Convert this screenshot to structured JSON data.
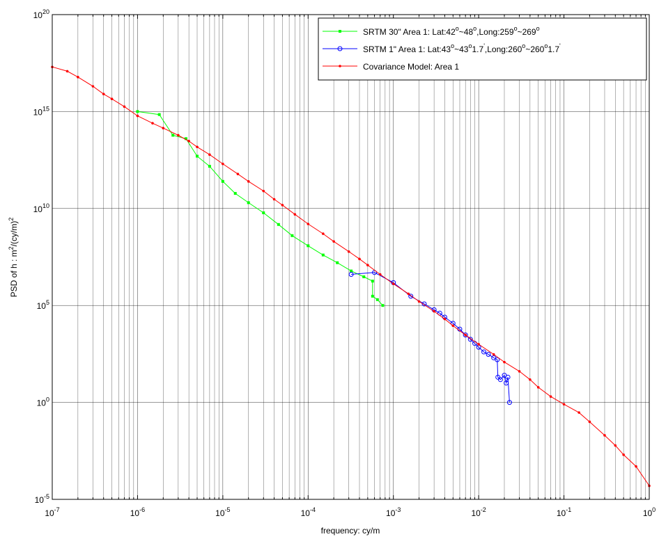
{
  "chart_data": {
    "type": "line",
    "title": "",
    "xlabel": "frequency: cy/m",
    "ylabel": "PSD of h : m²/(cy/m)²",
    "ylabel_parts": {
      "main": "PSD of h : m",
      "sup1": "2",
      "mid": "/(cy/m)",
      "sup2": "2"
    },
    "x_scale": "log",
    "y_scale": "log",
    "xlim": [
      1e-07,
      1
    ],
    "ylim": [
      1e-05,
      1e+20
    ],
    "x_ticks": [
      {
        "exp": -7,
        "base": "10",
        "pow": "-7"
      },
      {
        "exp": -6,
        "base": "10",
        "pow": "-6"
      },
      {
        "exp": -5,
        "base": "10",
        "pow": "-5"
      },
      {
        "exp": -4,
        "base": "10",
        "pow": "-4"
      },
      {
        "exp": -3,
        "base": "10",
        "pow": "-3"
      },
      {
        "exp": -2,
        "base": "10",
        "pow": "-2"
      },
      {
        "exp": -1,
        "base": "10",
        "pow": "-1"
      },
      {
        "exp": 0,
        "base": "10",
        "pow": "0"
      }
    ],
    "y_ticks": [
      {
        "exp": -5,
        "base": "10",
        "pow": "-5"
      },
      {
        "exp": 0,
        "base": "10",
        "pow": "0"
      },
      {
        "exp": 5,
        "base": "10",
        "pow": "5"
      },
      {
        "exp": 10,
        "base": "10",
        "pow": "10"
      },
      {
        "exp": 15,
        "base": "10",
        "pow": "15"
      },
      {
        "exp": 20,
        "base": "10",
        "pow": "20"
      }
    ],
    "grid": true,
    "legend_position": "top-right",
    "legend": [
      {
        "series": 0,
        "parts": [
          "SRTM 30\" Area 1: Lat:42",
          "o",
          "~48",
          "o",
          ",Long:259",
          "o",
          "~269",
          "o"
        ]
      },
      {
        "series": 1,
        "parts": [
          "SRTM 1\" Area 1: Lat:43",
          "o",
          "~43",
          "o",
          "1.7",
          "'",
          ",Long:260",
          "o",
          "~260",
          "o",
          "1.7",
          "'"
        ]
      },
      {
        "series": 2,
        "parts": [
          "Covariance Model: Area 1"
        ]
      }
    ],
    "series": [
      {
        "name": "SRTM 30\" Area 1: Lat:42°~48°,Long:259°~269°",
        "color": "#00ff00",
        "marker": "square",
        "x": [
          1e-06,
          1.8e-06,
          2.6e-06,
          3.7e-06,
          5e-06,
          7e-06,
          1e-05,
          1.4e-05,
          2e-05,
          3e-05,
          4.5e-05,
          6.5e-05,
          0.0001,
          0.00015,
          0.00022,
          0.00032,
          0.00045,
          0.00057,
          0.00057,
          0.00065,
          0.00075
        ],
        "y": [
          1000000000000000.0,
          700000000000000.0,
          60000000000000.0,
          40000000000000.0,
          5000000000000.0,
          1500000000000.0,
          250000000000.0,
          60000000000.0,
          20000000000.0,
          6000000000.0,
          1500000000.0,
          400000000.0,
          120000000.0,
          40000000.0,
          16000000.0,
          6000000.0,
          3000000.0,
          1800000.0,
          300000.0,
          200000.0,
          100000.0
        ]
      },
      {
        "name": "SRTM 1\" Area 1: Lat:43°~43°1.7',Long:260°~260°1.7'",
        "color": "#0000ff",
        "marker": "circle",
        "x": [
          0.00032,
          0.0006,
          0.001,
          0.0016,
          0.0023,
          0.003,
          0.0035,
          0.004,
          0.005,
          0.006,
          0.007,
          0.008,
          0.009,
          0.01,
          0.0115,
          0.013,
          0.015,
          0.0165,
          0.0168,
          0.018,
          0.02,
          0.021,
          0.022,
          0.023
        ],
        "y": [
          4000000.0,
          5000000.0,
          1500000.0,
          300000.0,
          120000.0,
          60000.0,
          40000.0,
          25000.0,
          12000.0,
          6000.0,
          3000.0,
          1800.0,
          1100.0,
          700,
          400,
          300,
          200,
          160,
          20,
          15,
          25,
          10,
          20,
          1
        ]
      },
      {
        "name": "Covariance Model: Area 1",
        "color": "#ff0000",
        "marker": "dot",
        "x": [
          1e-07,
          1.5e-07,
          2e-07,
          3e-07,
          4e-07,
          5e-07,
          7e-07,
          1e-06,
          1.5e-06,
          2e-06,
          3e-06,
          4e-06,
          5e-06,
          7e-06,
          1e-05,
          1.5e-05,
          2e-05,
          3e-05,
          4e-05,
          5e-05,
          7e-05,
          0.0001,
          0.00015,
          0.0002,
          0.0003,
          0.0004,
          0.0005,
          0.0007,
          0.001,
          0.0015,
          0.002,
          0.003,
          0.004,
          0.005,
          0.007,
          0.01,
          0.015,
          0.02,
          0.03,
          0.04,
          0.05,
          0.07,
          0.1,
          0.15,
          0.2,
          0.3,
          0.4,
          0.5,
          0.7,
          1
        ],
        "y": [
          2e+17,
          1.2e+17,
          6e+16,
          2e+16,
          8000000000000000.0,
          4500000000000000.0,
          1800000000000000.0,
          600000000000000.0,
          250000000000000.0,
          140000000000000.0,
          60000000000000.0,
          30000000000000.0,
          15000000000000.0,
          6000000000000.0,
          2000000000000.0,
          600000000000.0,
          250000000000.0,
          80000000000.0,
          30000000000.0,
          15000000000.0,
          5000000000.0,
          1600000000.0,
          500000000.0,
          200000000.0,
          60000000.0,
          25000000.0,
          12000000.0,
          4000000.0,
          1300000.0,
          400000.0,
          160000.0,
          50000.0,
          20000.0,
          9000.0,
          3000.0,
          1000.0,
          300,
          120,
          40,
          15,
          6,
          2,
          0.8,
          0.3,
          0.1,
          0.02,
          0.006,
          0.002,
          0.0005,
          5e-05
        ]
      }
    ]
  }
}
